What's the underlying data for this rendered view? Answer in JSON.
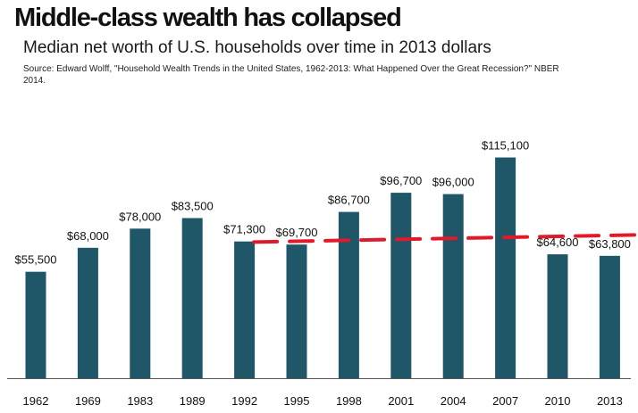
{
  "header": {
    "title": "Middle-class wealth has collapsed",
    "subtitle": "Median net worth of U.S. households over time in 2013 dollars",
    "source": "Source: Edward Wolff, \"Household Wealth Trends in the United States, 1962-2013: What Happened Over the Great Recession?\" NBER 2014."
  },
  "colors": {
    "bar": "#1f5668",
    "reference_line": "#e0192b",
    "axis": "#555555",
    "text": "#111111"
  },
  "chart_data": {
    "type": "bar",
    "title": "Middle-class wealth has collapsed",
    "subtitle": "Median net worth of U.S. households over time in 2013 dollars",
    "categories": [
      "1962",
      "1969",
      "1983",
      "1989",
      "1992",
      "1995",
      "1998",
      "2001",
      "2004",
      "2007",
      "2010",
      "2013"
    ],
    "values": [
      55500,
      68000,
      78000,
      83500,
      71300,
      69700,
      86700,
      96700,
      96000,
      115100,
      64600,
      63800
    ],
    "value_labels": [
      "$55,500",
      "$68,000",
      "$78,000",
      "$83,500",
      "$71,300",
      "$69,700",
      "$86,700",
      "$96,700",
      "$96,000",
      "$115,100",
      "$64,600",
      "$63,800"
    ],
    "xlabel": "",
    "ylabel": "",
    "ylim": [
      0,
      120000
    ],
    "grid": false,
    "y_axis_shown": false,
    "reference_line": {
      "style": "dashed",
      "from_category": "1992",
      "to_category": "2013",
      "level": "approx. 1992 value",
      "approx_value": 71000
    }
  }
}
